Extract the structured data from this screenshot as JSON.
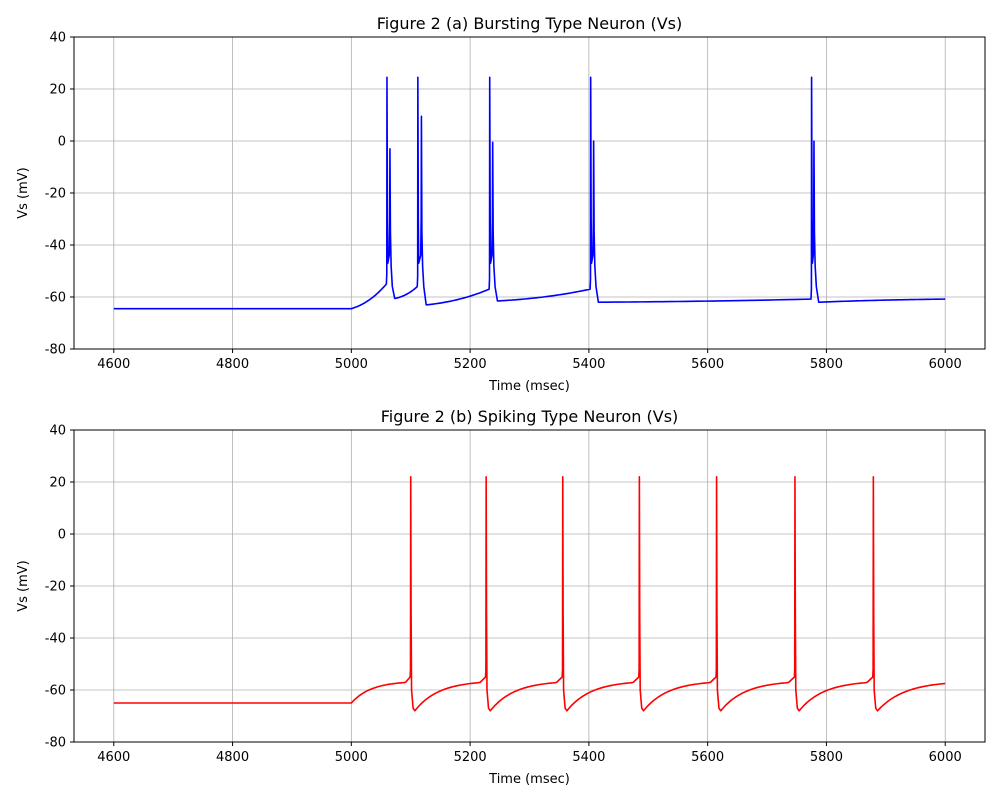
{
  "chart_data": [
    {
      "type": "line",
      "title": "Figure 2 (a) Bursting Type Neuron (Vs)",
      "xlabel": "Time (msec)",
      "ylabel": "Vs (mV)",
      "xlim": [
        4533,
        6067
      ],
      "ylim": [
        -80,
        40
      ],
      "xticks": [
        4600,
        4800,
        5000,
        5200,
        5400,
        5600,
        5800,
        6000
      ],
      "yticks": [
        -80,
        -60,
        -40,
        -20,
        0,
        20,
        40
      ],
      "grid": true,
      "color": "#0000ff",
      "series": [
        {
          "resting_potential": -64.5,
          "stim_onset": 5000,
          "end_time": 6000,
          "bursts": [
            {
              "t1": 5060,
              "t2": 5065,
              "peak1": 24.5,
              "peak2": -3,
              "trough": -60.5,
              "recover_to": -55
            },
            {
              "t1": 5112,
              "t2": 5118,
              "peak1": 24.5,
              "peak2": 9.5,
              "trough": -63,
              "recover_to": -56
            },
            {
              "t1": 5233,
              "t2": 5238,
              "peak1": 24.5,
              "peak2": -0.5,
              "trough": -61.5,
              "recover_to": -57
            },
            {
              "t1": 5403,
              "t2": 5408,
              "peak1": 24.5,
              "peak2": 0,
              "trough": -62,
              "recover_to": -57
            },
            {
              "t1": 5775,
              "t2": 5779,
              "peak1": 24.5,
              "peak2": 0,
              "trough": -62,
              "recover_to": -60.8
            }
          ]
        }
      ]
    },
    {
      "type": "line",
      "title": "Figure 2 (b) Spiking Type Neuron (Vs)",
      "xlabel": "Time (msec)",
      "ylabel": "Vs (mV)",
      "xlim": [
        4533,
        6067
      ],
      "ylim": [
        -80,
        40
      ],
      "xticks": [
        4600,
        4800,
        5000,
        5200,
        5400,
        5600,
        5800,
        6000
      ],
      "yticks": [
        -80,
        -60,
        -40,
        -20,
        0,
        20,
        40
      ],
      "grid": true,
      "color": "#ff0000",
      "series": [
        {
          "resting_potential": -65,
          "stim_onset": 5000,
          "end_time": 6000,
          "spike_times": [
            5100,
            5227,
            5356,
            5485,
            5615,
            5747,
            5879
          ],
          "spike_peak": 22,
          "trough": -68,
          "pre_spike": -55,
          "end_value": -57.5
        }
      ]
    }
  ]
}
